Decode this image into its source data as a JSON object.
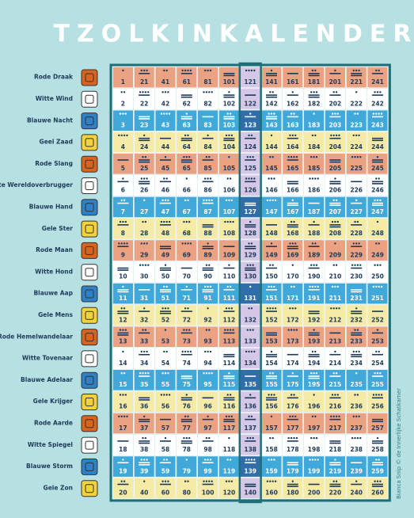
{
  "title": "TZOLKINKALENDER",
  "credit": "Bianca Snip © de Innerlijke Schatkamer",
  "rows": [
    {
      "label": "Rode Draak",
      "kin": [
        1,
        21,
        41,
        61,
        81,
        101,
        121,
        141,
        161,
        181,
        201,
        221,
        241
      ]
    },
    {
      "label": "Witte Wind",
      "kin": [
        2,
        22,
        42,
        62,
        82,
        102,
        122,
        142,
        162,
        182,
        202,
        222,
        242
      ]
    },
    {
      "label": "Blauwe Nacht",
      "kin": [
        3,
        23,
        43,
        63,
        83,
        103,
        123,
        143,
        163,
        183,
        203,
        223,
        243
      ]
    },
    {
      "label": "Geel Zaad",
      "kin": [
        4,
        24,
        44,
        64,
        84,
        104,
        124,
        144,
        164,
        184,
        204,
        224,
        244
      ]
    },
    {
      "label": "Rode Slang",
      "kin": [
        5,
        25,
        45,
        65,
        85,
        105,
        125,
        145,
        165,
        185,
        205,
        225,
        245
      ]
    },
    {
      "label": "Witte Wereldoverbrugger",
      "kin": [
        6,
        26,
        46,
        66,
        86,
        106,
        126,
        146,
        166,
        186,
        206,
        226,
        246
      ]
    },
    {
      "label": "Blauwe Hand",
      "kin": [
        7,
        27,
        47,
        67,
        87,
        107,
        127,
        147,
        167,
        187,
        207,
        227,
        247
      ]
    },
    {
      "label": "Gele Ster",
      "kin": [
        8,
        28,
        48,
        68,
        88,
        108,
        128,
        148,
        168,
        188,
        208,
        228,
        248
      ]
    },
    {
      "label": "Rode Maan",
      "kin": [
        9,
        29,
        49,
        69,
        89,
        109,
        129,
        149,
        169,
        189,
        209,
        229,
        249
      ]
    },
    {
      "label": "Witte Hond",
      "kin": [
        10,
        30,
        50,
        70,
        90,
        110,
        130,
        150,
        170,
        190,
        210,
        230,
        250
      ]
    },
    {
      "label": "Blauwe Aap",
      "kin": [
        11,
        31,
        51,
        71,
        91,
        111,
        131,
        151,
        171,
        191,
        211,
        231,
        251
      ]
    },
    {
      "label": "Gele Mens",
      "kin": [
        12,
        32,
        52,
        72,
        92,
        112,
        132,
        152,
        172,
        192,
        212,
        232,
        252
      ]
    },
    {
      "label": "Rode Hemelwandelaar",
      "kin": [
        13,
        33,
        53,
        73,
        93,
        113,
        133,
        153,
        173,
        193,
        213,
        233,
        253
      ]
    },
    {
      "label": "Witte Tovenaar",
      "kin": [
        14,
        34,
        54,
        74,
        94,
        114,
        134,
        154,
        174,
        194,
        214,
        234,
        254
      ]
    },
    {
      "label": "Blauwe Adelaar",
      "kin": [
        15,
        35,
        55,
        75,
        95,
        115,
        135,
        155,
        175,
        195,
        215,
        235,
        255
      ]
    },
    {
      "label": "Gele Krijger",
      "kin": [
        16,
        36,
        56,
        76,
        96,
        116,
        136,
        156,
        176,
        196,
        216,
        236,
        256
      ]
    },
    {
      "label": "Rode Aarde",
      "kin": [
        17,
        37,
        57,
        77,
        97,
        117,
        137,
        157,
        177,
        197,
        217,
        237,
        257
      ]
    },
    {
      "label": "Witte Spiegel",
      "kin": [
        18,
        38,
        58,
        78,
        98,
        118,
        138,
        158,
        178,
        198,
        218,
        238,
        258
      ]
    },
    {
      "label": "Blauwe Storm",
      "kin": [
        19,
        39,
        59,
        79,
        99,
        119,
        139,
        159,
        179,
        199,
        219,
        239,
        259
      ]
    },
    {
      "label": "Gele Zon",
      "kin": [
        20,
        40,
        60,
        80,
        100,
        120,
        140,
        160,
        180,
        200,
        220,
        240,
        260
      ]
    }
  ]
}
